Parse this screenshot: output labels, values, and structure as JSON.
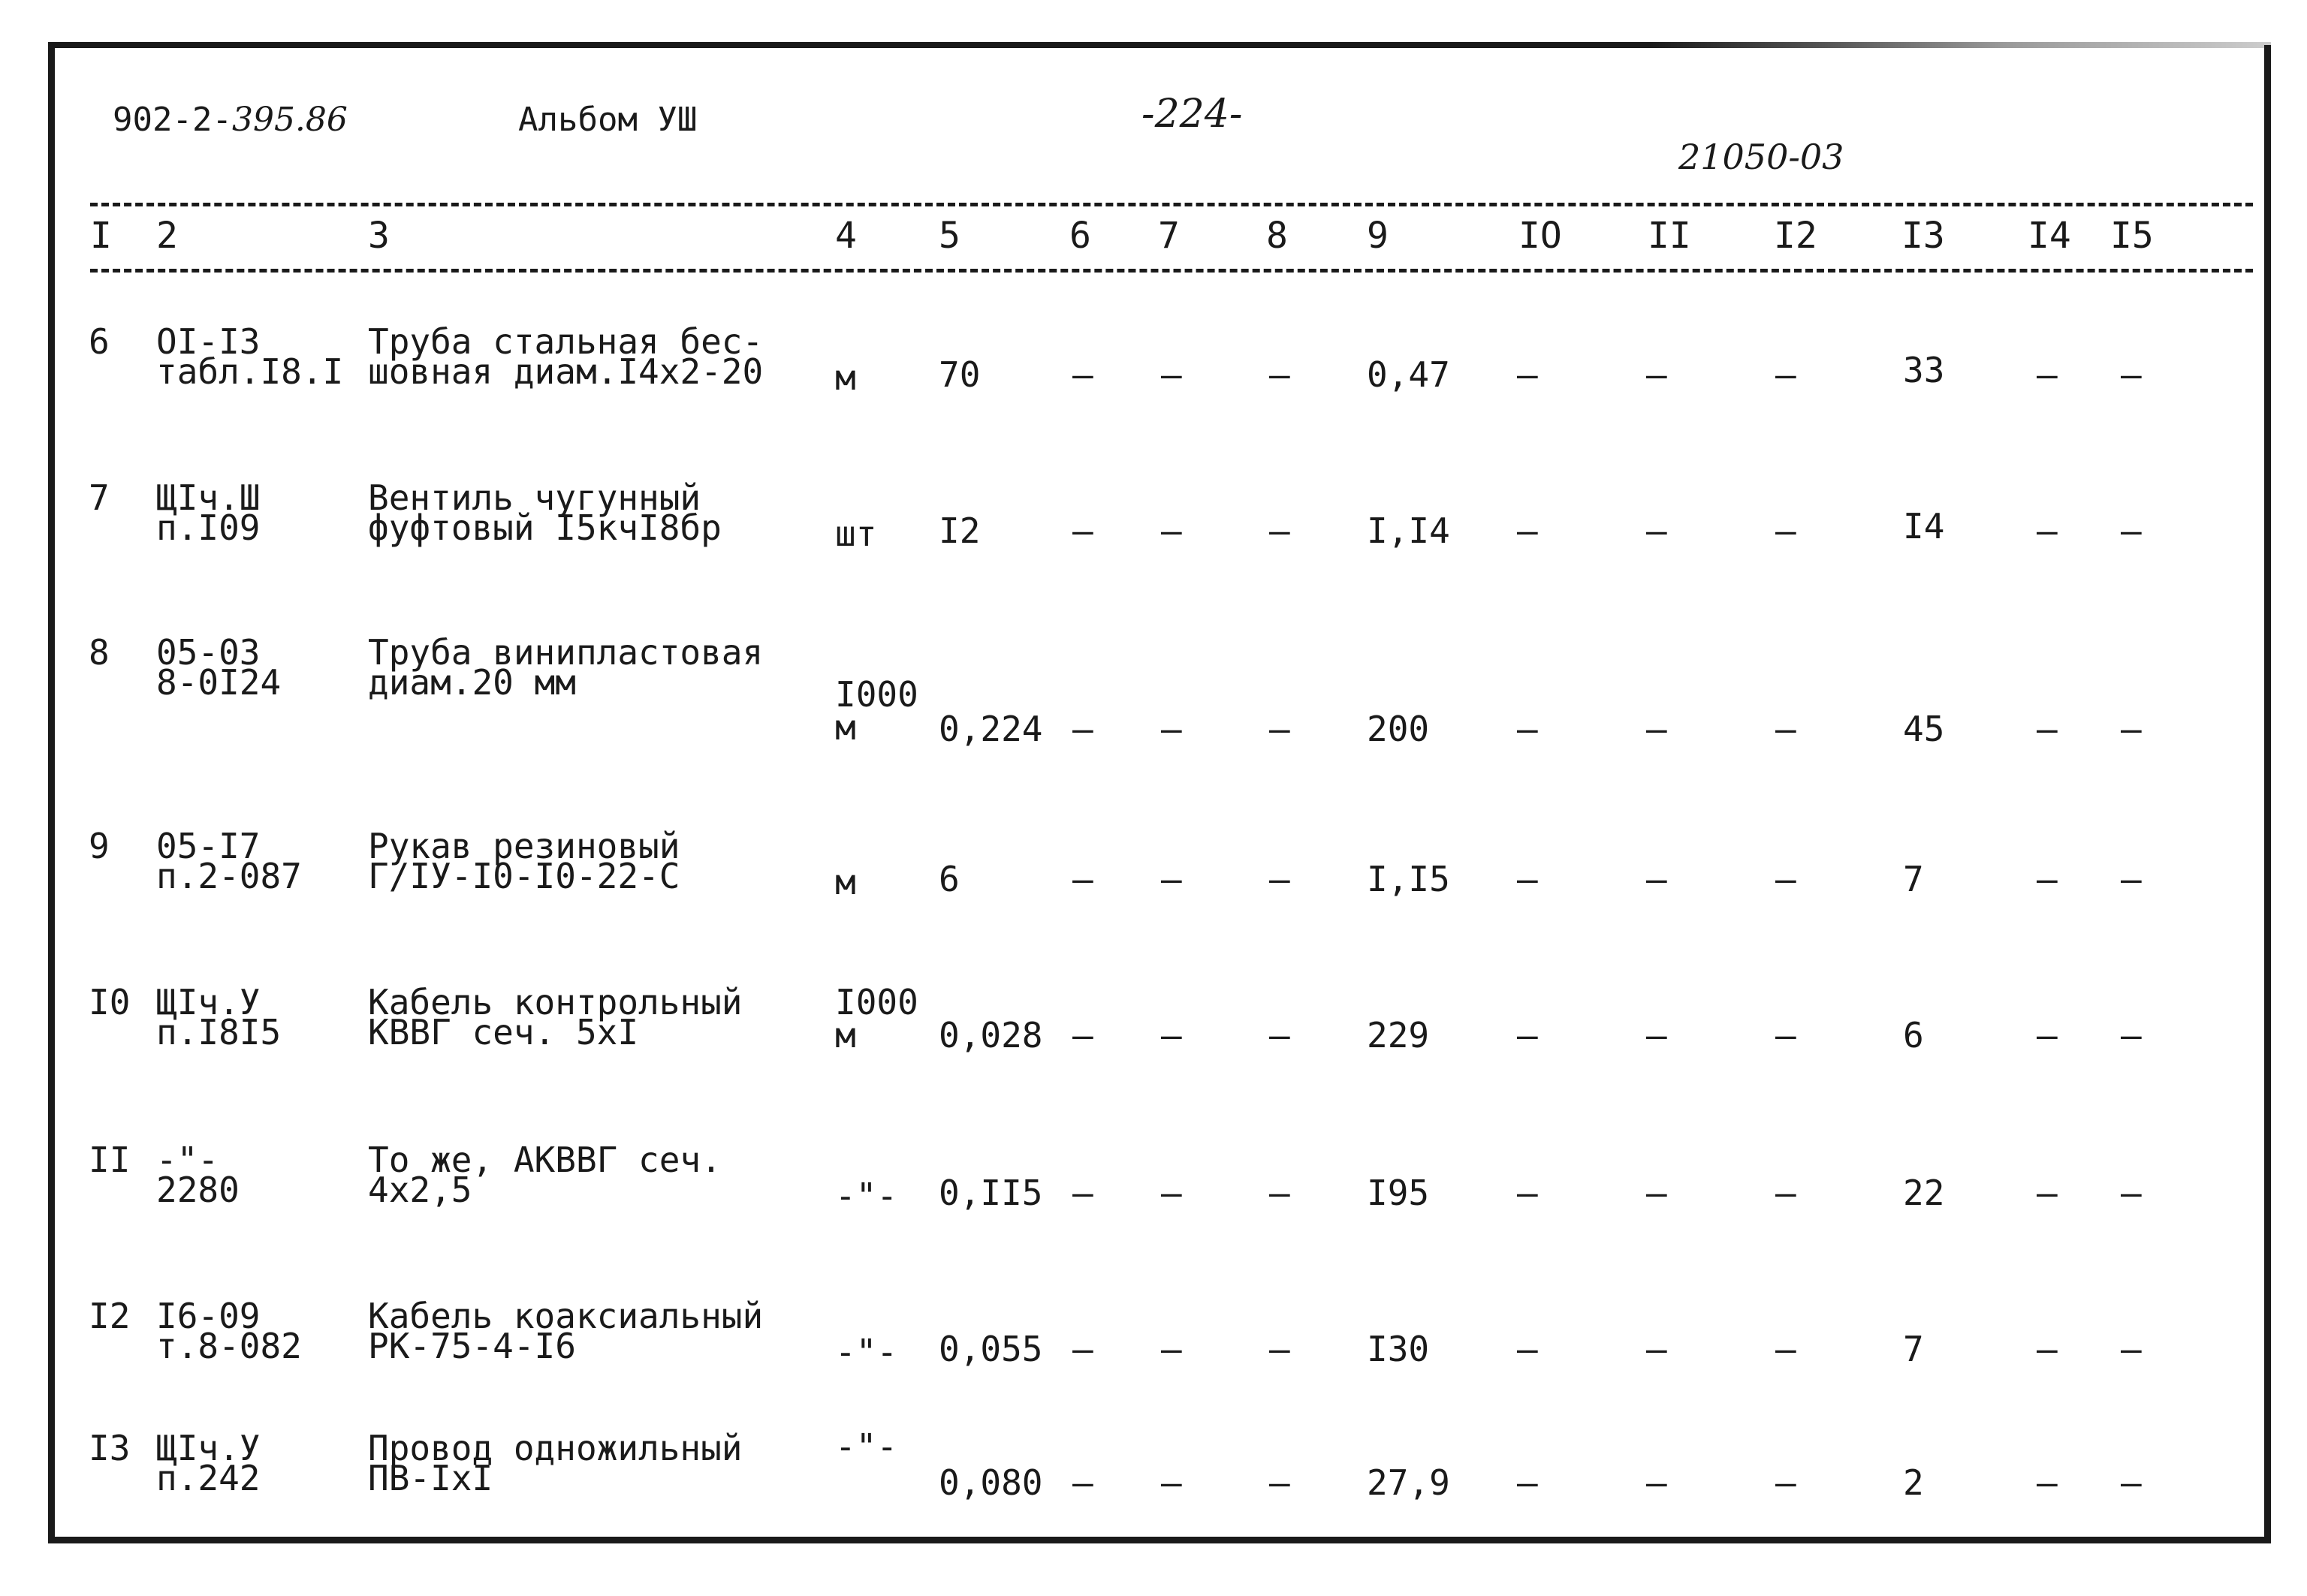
{
  "header": {
    "doc_code_prefix": "902-2-",
    "doc_code_hand": "395.86",
    "album": "Альбом УШ",
    "page_number": "-224-",
    "stamp_code": "21050-03"
  },
  "columns": [
    "I",
    "2",
    "3",
    "4",
    "5",
    "6",
    "7",
    "8",
    "9",
    "IO",
    "II",
    "I2",
    "I3",
    "I4",
    "I5"
  ],
  "rows": [
    {
      "num": "6",
      "ref": [
        "OI-I3",
        "табл.I8.I"
      ],
      "name": [
        "Труба стальная бес-",
        "шовная диам.I4x2-20"
      ],
      "unit": [
        "",
        "м"
      ],
      "qty": "70",
      "c6": "–",
      "c7": "–",
      "c8": "–",
      "c9": "0,47",
      "c10": "–",
      "c11": "–",
      "c12": "–",
      "c13": "33",
      "c14": "–",
      "c15": "–"
    },
    {
      "num": "7",
      "ref": [
        "ЩIч.Ш",
        "п.I09"
      ],
      "name": [
        "Вентиль чугунный",
        "фуфтовый I5кчI8бр"
      ],
      "unit": [
        "",
        "шт"
      ],
      "qty": "I2",
      "c6": "–",
      "c7": "–",
      "c8": "–",
      "c9": "I,I4",
      "c10": "–",
      "c11": "–",
      "c12": "–",
      "c13": "I4",
      "c14": "–",
      "c15": "–"
    },
    {
      "num": "8",
      "ref": [
        "05-03",
        "8-0I24"
      ],
      "name": [
        "Труба винипластовая",
        "диам.20 мм"
      ],
      "unit": [
        "I000",
        "м"
      ],
      "qty": "0,224",
      "c6": "–",
      "c7": "–",
      "c8": "–",
      "c9": "200",
      "c10": "–",
      "c11": "–",
      "c12": "–",
      "c13": "45",
      "c14": "–",
      "c15": "–"
    },
    {
      "num": "9",
      "ref": [
        "05-I7",
        "п.2-087"
      ],
      "name": [
        "Рукав резиновый",
        "Г/IУ-I0-I0-22-С"
      ],
      "unit": [
        "",
        "м"
      ],
      "qty": "6",
      "c6": "–",
      "c7": "–",
      "c8": "–",
      "c9": "I,I5",
      "c10": "–",
      "c11": "–",
      "c12": "–",
      "c13": "7",
      "c14": "–",
      "c15": "–"
    },
    {
      "num": "I0",
      "ref": [
        "ЩIч.У",
        "п.I8I5"
      ],
      "name": [
        "Кабель контрольный",
        "КВВГ сеч. 5xI"
      ],
      "unit": [
        "I000",
        "м"
      ],
      "qty": "0,028",
      "c6": "–",
      "c7": "–",
      "c8": "–",
      "c9": "229",
      "c10": "–",
      "c11": "–",
      "c12": "–",
      "c13": "6",
      "c14": "–",
      "c15": "–"
    },
    {
      "num": "II",
      "ref": [
        "-\"-",
        "2280"
      ],
      "name": [
        "То же, АКВВГ сеч.",
        "4x2,5"
      ],
      "unit": [
        "",
        "-\"-"
      ],
      "qty": "0,II5",
      "c6": "–",
      "c7": "–",
      "c8": "–",
      "c9": "I95",
      "c10": "–",
      "c11": "–",
      "c12": "–",
      "c13": "22",
      "c14": "–",
      "c15": "–"
    },
    {
      "num": "I2",
      "ref": [
        "I6-09",
        "т.8-082"
      ],
      "name": [
        "Кабель коаксиальный",
        "РК-75-4-I6"
      ],
      "unit": [
        "",
        "-\"-"
      ],
      "qty": "0,055",
      "c6": "–",
      "c7": "–",
      "c8": "–",
      "c9": "I30",
      "c10": "–",
      "c11": "–",
      "c12": "–",
      "c13": "7",
      "c14": "–",
      "c15": "–"
    },
    {
      "num": "I3",
      "ref": [
        "ЩIч.У",
        "п.242"
      ],
      "name": [
        "Провод одножильный",
        "ПВ-IxI"
      ],
      "unit": [
        "-\"-",
        ""
      ],
      "qty": "0,080",
      "c6": "–",
      "c7": "–",
      "c8": "–",
      "c9": "27,9",
      "c10": "–",
      "c11": "–",
      "c12": "–",
      "c13": "2",
      "c14": "–",
      "c15": "–"
    }
  ]
}
